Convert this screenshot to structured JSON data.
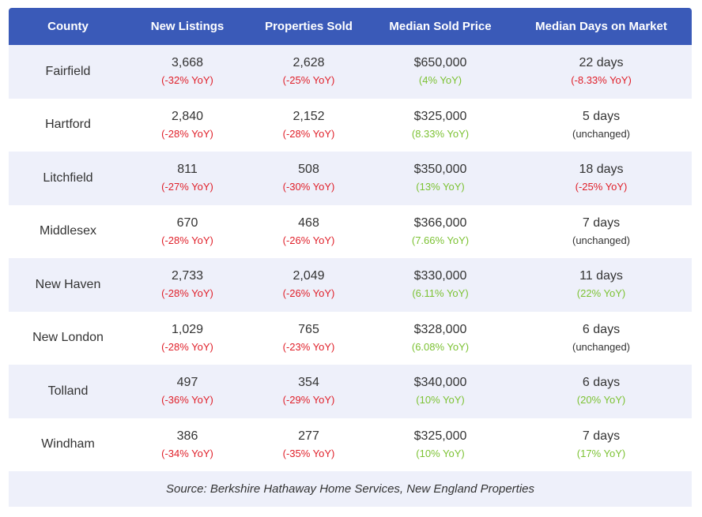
{
  "header": {
    "county": "County",
    "new_listings": "New Listings",
    "properties_sold": "Properties Sold",
    "median_sold_price": "Median Sold Price",
    "median_days_on_market": "Median Days on Market"
  },
  "colors": {
    "header_bg": "#3a5ab8",
    "row_alt_bg": "#eef0fa",
    "negative": "#e0202a",
    "positive": "#7cc233",
    "neutral": "#333333"
  },
  "rows": [
    {
      "county": "Fairfield",
      "new_listings": {
        "value": "3,668",
        "change": "(-32% YoY)",
        "trend": "neg"
      },
      "properties_sold": {
        "value": "2,628",
        "change": "(-25% YoY)",
        "trend": "neg"
      },
      "median_sold_price": {
        "value": "$650,000",
        "change": "(4% YoY)",
        "trend": "pos"
      },
      "median_days_on_market": {
        "value": "22 days",
        "change": "(-8.33% YoY)",
        "trend": "neg"
      }
    },
    {
      "county": "Hartford",
      "new_listings": {
        "value": "2,840",
        "change": "(-28% YoY)",
        "trend": "neg"
      },
      "properties_sold": {
        "value": "2,152",
        "change": "(-28% YoY)",
        "trend": "neg"
      },
      "median_sold_price": {
        "value": "$325,000",
        "change": "(8.33% YoY)",
        "trend": "pos"
      },
      "median_days_on_market": {
        "value": "5 days",
        "change": "(unchanged)",
        "trend": "neu"
      }
    },
    {
      "county": "Litchfield",
      "new_listings": {
        "value": "811",
        "change": "(-27% YoY)",
        "trend": "neg"
      },
      "properties_sold": {
        "value": "508",
        "change": "(-30% YoY)",
        "trend": "neg"
      },
      "median_sold_price": {
        "value": "$350,000",
        "change": "(13% YoY)",
        "trend": "pos"
      },
      "median_days_on_market": {
        "value": "18 days",
        "change": "(-25% YoY)",
        "trend": "neg"
      }
    },
    {
      "county": "Middlesex",
      "new_listings": {
        "value": "670",
        "change": "(-28% YoY)",
        "trend": "neg"
      },
      "properties_sold": {
        "value": "468",
        "change": "(-26% YoY)",
        "trend": "neg"
      },
      "median_sold_price": {
        "value": "$366,000",
        "change": "(7.66% YoY)",
        "trend": "pos"
      },
      "median_days_on_market": {
        "value": "7 days",
        "change": "(unchanged)",
        "trend": "neu"
      }
    },
    {
      "county": "New Haven",
      "new_listings": {
        "value": "2,733",
        "change": "(-28% YoY)",
        "trend": "neg"
      },
      "properties_sold": {
        "value": "2,049",
        "change": "(-26% YoY)",
        "trend": "neg"
      },
      "median_sold_price": {
        "value": "$330,000",
        "change": "(6.11% YoY)",
        "trend": "pos"
      },
      "median_days_on_market": {
        "value": "11 days",
        "change": "(22% YoY)",
        "trend": "pos"
      }
    },
    {
      "county": "New London",
      "new_listings": {
        "value": "1,029",
        "change": "(-28% YoY)",
        "trend": "neg"
      },
      "properties_sold": {
        "value": "765",
        "change": "(-23% YoY)",
        "trend": "neg"
      },
      "median_sold_price": {
        "value": "$328,000",
        "change": "(6.08% YoY)",
        "trend": "pos"
      },
      "median_days_on_market": {
        "value": "6 days",
        "change": "(unchanged)",
        "trend": "neu"
      }
    },
    {
      "county": "Tolland",
      "new_listings": {
        "value": "497",
        "change": "(-36% YoY)",
        "trend": "neg"
      },
      "properties_sold": {
        "value": "354",
        "change": "(-29% YoY)",
        "trend": "neg"
      },
      "median_sold_price": {
        "value": "$340,000",
        "change": "(10% YoY)",
        "trend": "pos"
      },
      "median_days_on_market": {
        "value": "6 days",
        "change": "(20% YoY)",
        "trend": "pos"
      }
    },
    {
      "county": "Windham",
      "new_listings": {
        "value": "386",
        "change": "(-34% YoY)",
        "trend": "neg"
      },
      "properties_sold": {
        "value": "277",
        "change": "(-35% YoY)",
        "trend": "neg"
      },
      "median_sold_price": {
        "value": "$325,000",
        "change": "(10% YoY)",
        "trend": "pos"
      },
      "median_days_on_market": {
        "value": "7 days",
        "change": "(17% YoY)",
        "trend": "pos"
      }
    }
  ],
  "source": "Source: Berkshire Hathaway Home Services, New England Properties"
}
